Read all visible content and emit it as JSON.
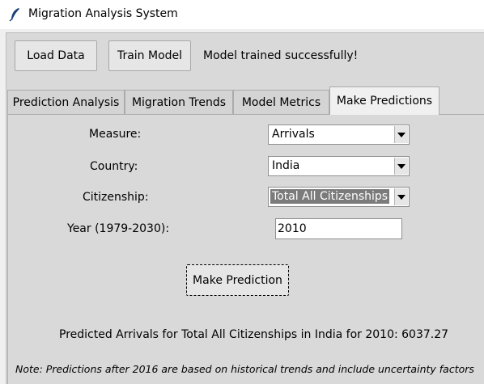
{
  "window": {
    "title": "Migration Analysis System",
    "icon": "feather-icon"
  },
  "toolbar": {
    "load_label": "Load Data",
    "train_label": "Train Model",
    "status_text": "Model trained successfully!"
  },
  "tabs": [
    {
      "label": "Prediction Analysis",
      "active": false
    },
    {
      "label": "Migration Trends",
      "active": false
    },
    {
      "label": "Model Metrics",
      "active": false
    },
    {
      "label": "Make Predictions",
      "active": true
    }
  ],
  "form": {
    "measure": {
      "label": "Measure:",
      "value": "Arrivals"
    },
    "country": {
      "label": "Country:",
      "value": "India"
    },
    "citizenship": {
      "label": "Citizenship:",
      "value": "Total All Citizenships"
    },
    "year": {
      "label": "Year (1979-2030):",
      "value": "2010"
    },
    "predict_label": "Make Prediction"
  },
  "result_text": "Predicted Arrivals for Total All Citizenships in India for 2010: 6037.27",
  "note_text": "Note: Predictions after 2016 are based on historical trends and include uncertainty factors"
}
